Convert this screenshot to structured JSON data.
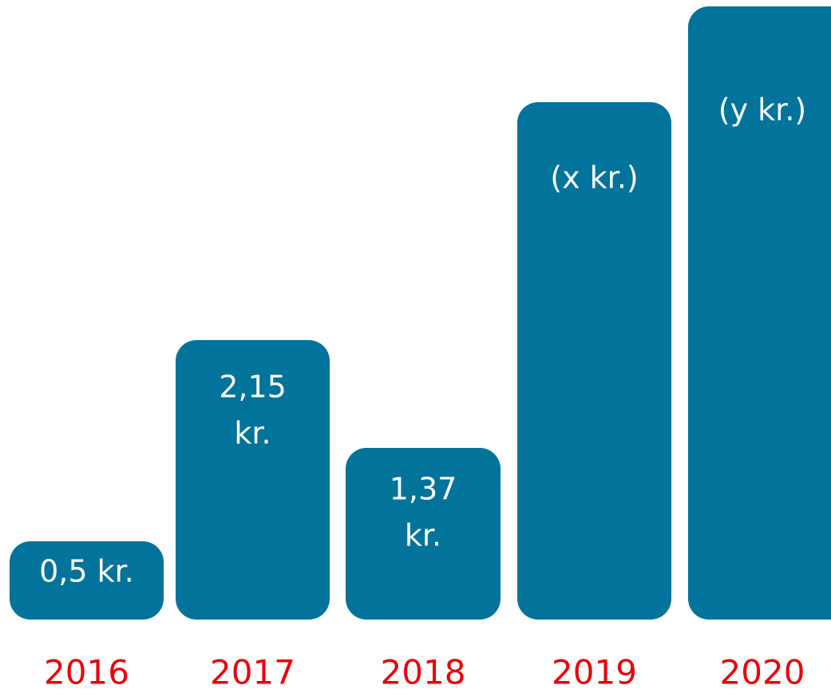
{
  "bars": [
    {
      "label": [
        "0,5 kr."
      ],
      "year": "2016"
    },
    {
      "label": [
        "2,15",
        "kr."
      ],
      "year": "2017"
    },
    {
      "label": [
        "1,37",
        "kr."
      ],
      "year": "2018"
    },
    {
      "label": [
        "(x kr.)"
      ],
      "year": "2019"
    },
    {
      "label": [
        "(y kr.)"
      ],
      "year": "2020"
    }
  ]
}
